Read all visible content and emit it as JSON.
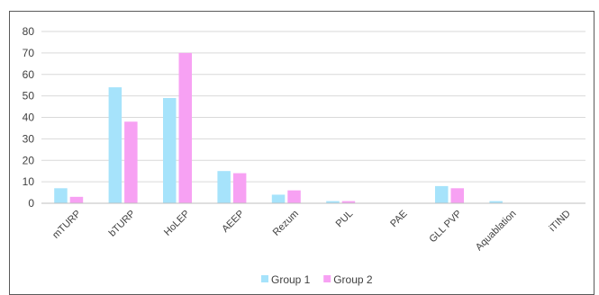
{
  "chart_data": {
    "type": "bar",
    "categories": [
      "mTURP",
      "bTURP",
      "HoLEP",
      "AEEP",
      "Rezum",
      "PUL",
      "PAE",
      "GLL PVP",
      "Aquablation",
      "iTIND"
    ],
    "series": [
      {
        "name": "Group 1",
        "color": "#a6e3fb",
        "values": [
          7,
          54,
          49,
          15,
          4,
          1,
          0,
          8,
          1,
          0
        ]
      },
      {
        "name": "Group 2",
        "color": "#f7a1f3",
        "values": [
          3,
          38,
          70,
          14,
          6,
          1,
          0,
          7,
          0,
          0
        ]
      }
    ],
    "ylim": [
      0,
      80
    ],
    "yticks": [
      0,
      10,
      20,
      30,
      40,
      50,
      60,
      70,
      80
    ],
    "title": "",
    "xlabel": "",
    "ylabel": "",
    "grid": true,
    "legend_position": "bottom-center"
  }
}
